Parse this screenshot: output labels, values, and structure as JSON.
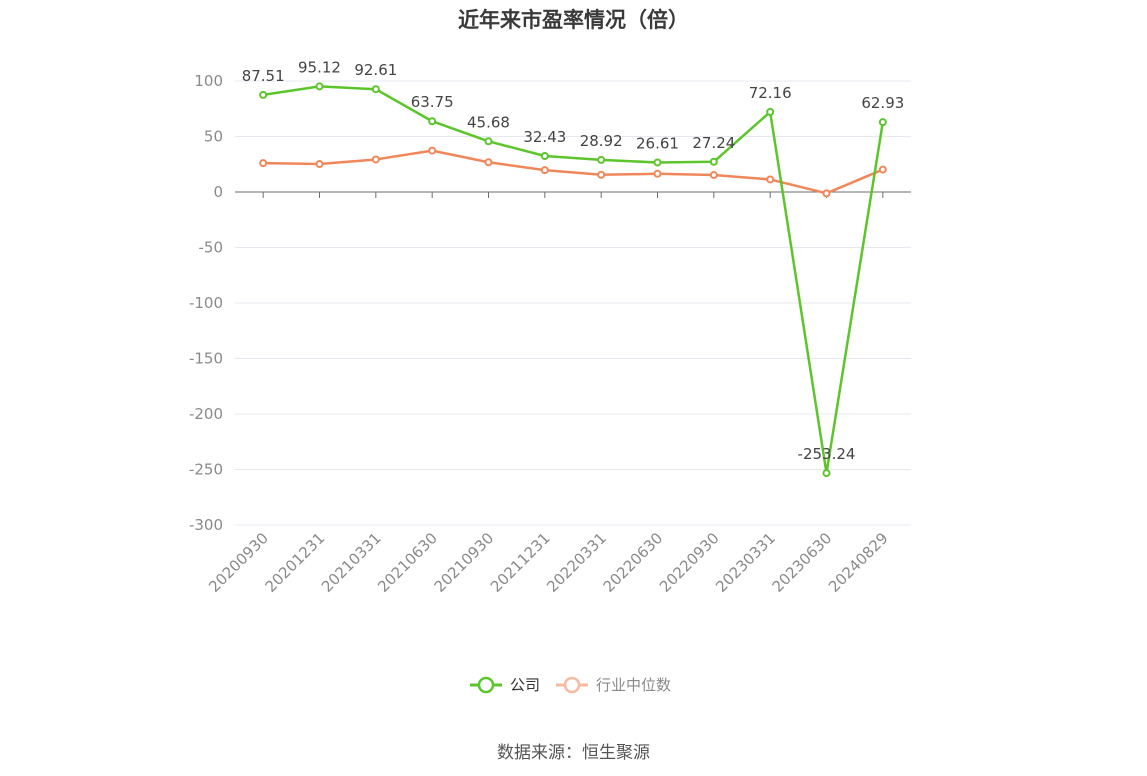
{
  "title": "近年来市盈率情况（倍）",
  "source": "数据来源：恒生聚源",
  "colors": {
    "company": "#5cc52b",
    "industry": "#f0875a",
    "industry_legend": "#f7b9a0",
    "grid": "#e6e8ef",
    "axis": "#6e6e6e"
  },
  "chart_data": {
    "type": "line",
    "title": "近年来市盈率情况（倍）",
    "categories": [
      "20200930",
      "20201231",
      "20210331",
      "20210630",
      "20210930",
      "20211231",
      "20220331",
      "20220630",
      "20220930",
      "20230331",
      "20230630",
      "20240829"
    ],
    "ylim": [
      -300,
      100
    ],
    "yticks": [
      100,
      50,
      0,
      -50,
      -100,
      -150,
      -200,
      -250,
      -300
    ],
    "grid": true,
    "legend_position": "bottom",
    "series": [
      {
        "name": "公司",
        "values": [
          87.51,
          95.12,
          92.61,
          63.75,
          45.68,
          32.43,
          28.92,
          26.61,
          27.24,
          72.16,
          -253.24,
          62.93
        ],
        "labels": [
          "87.51",
          "95.12",
          "92.61",
          "63.75",
          "45.68",
          "32.43",
          "28.92",
          "26.61",
          "27.24",
          "72.16",
          "-253.24",
          "62.93"
        ]
      },
      {
        "name": "行业中位数",
        "values": [
          26.0,
          25.2,
          29.3,
          37.3,
          26.8,
          19.7,
          15.5,
          16.4,
          15.3,
          11.3,
          -1.2,
          20.2
        ]
      }
    ]
  }
}
